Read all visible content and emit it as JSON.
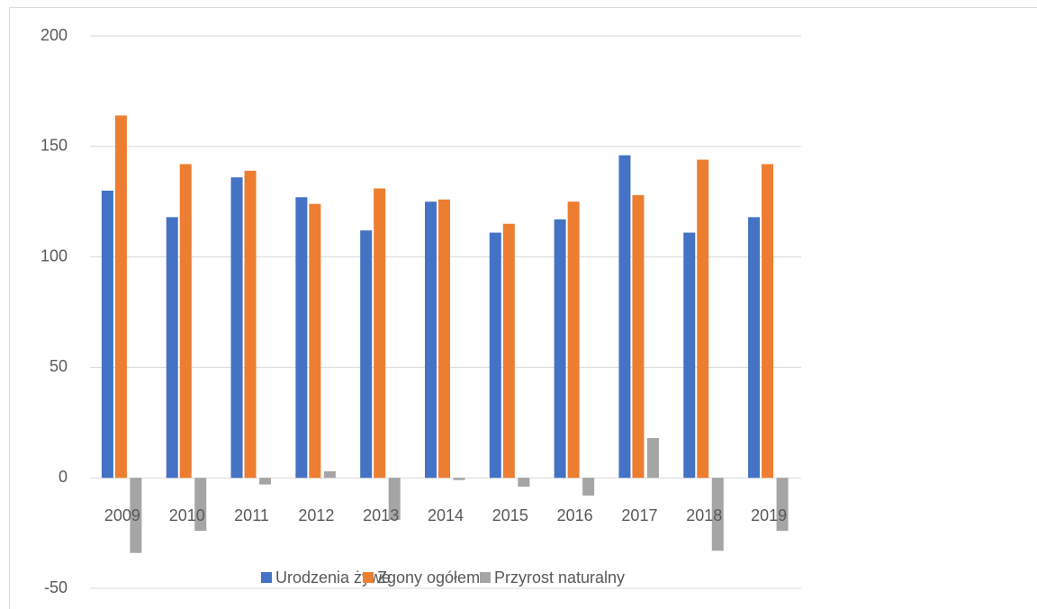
{
  "chart_data": {
    "type": "bar",
    "categories": [
      "2009",
      "2010",
      "2011",
      "2012",
      "2013",
      "2014",
      "2015",
      "2016",
      "2017",
      "2018",
      "2019"
    ],
    "series": [
      {
        "name": "Urodzenia żywe",
        "color": "#4472c4",
        "values": [
          130,
          118,
          136,
          127,
          112,
          125,
          111,
          117,
          146,
          111,
          118
        ]
      },
      {
        "name": "Zgony ogółem",
        "color": "#ed7d31",
        "values": [
          164,
          142,
          139,
          124,
          131,
          126,
          115,
          125,
          128,
          144,
          142
        ]
      },
      {
        "name": "Przyrost naturalny",
        "color": "#a5a5a5",
        "values": [
          -34,
          -24,
          -3,
          3,
          -19,
          -1,
          -4,
          -8,
          18,
          -33,
          -24
        ]
      }
    ],
    "ylim": [
      -50,
      200
    ],
    "yticks": [
      -50,
      0,
      50,
      100,
      150,
      200
    ],
    "grid": true,
    "legend": "bottom"
  }
}
